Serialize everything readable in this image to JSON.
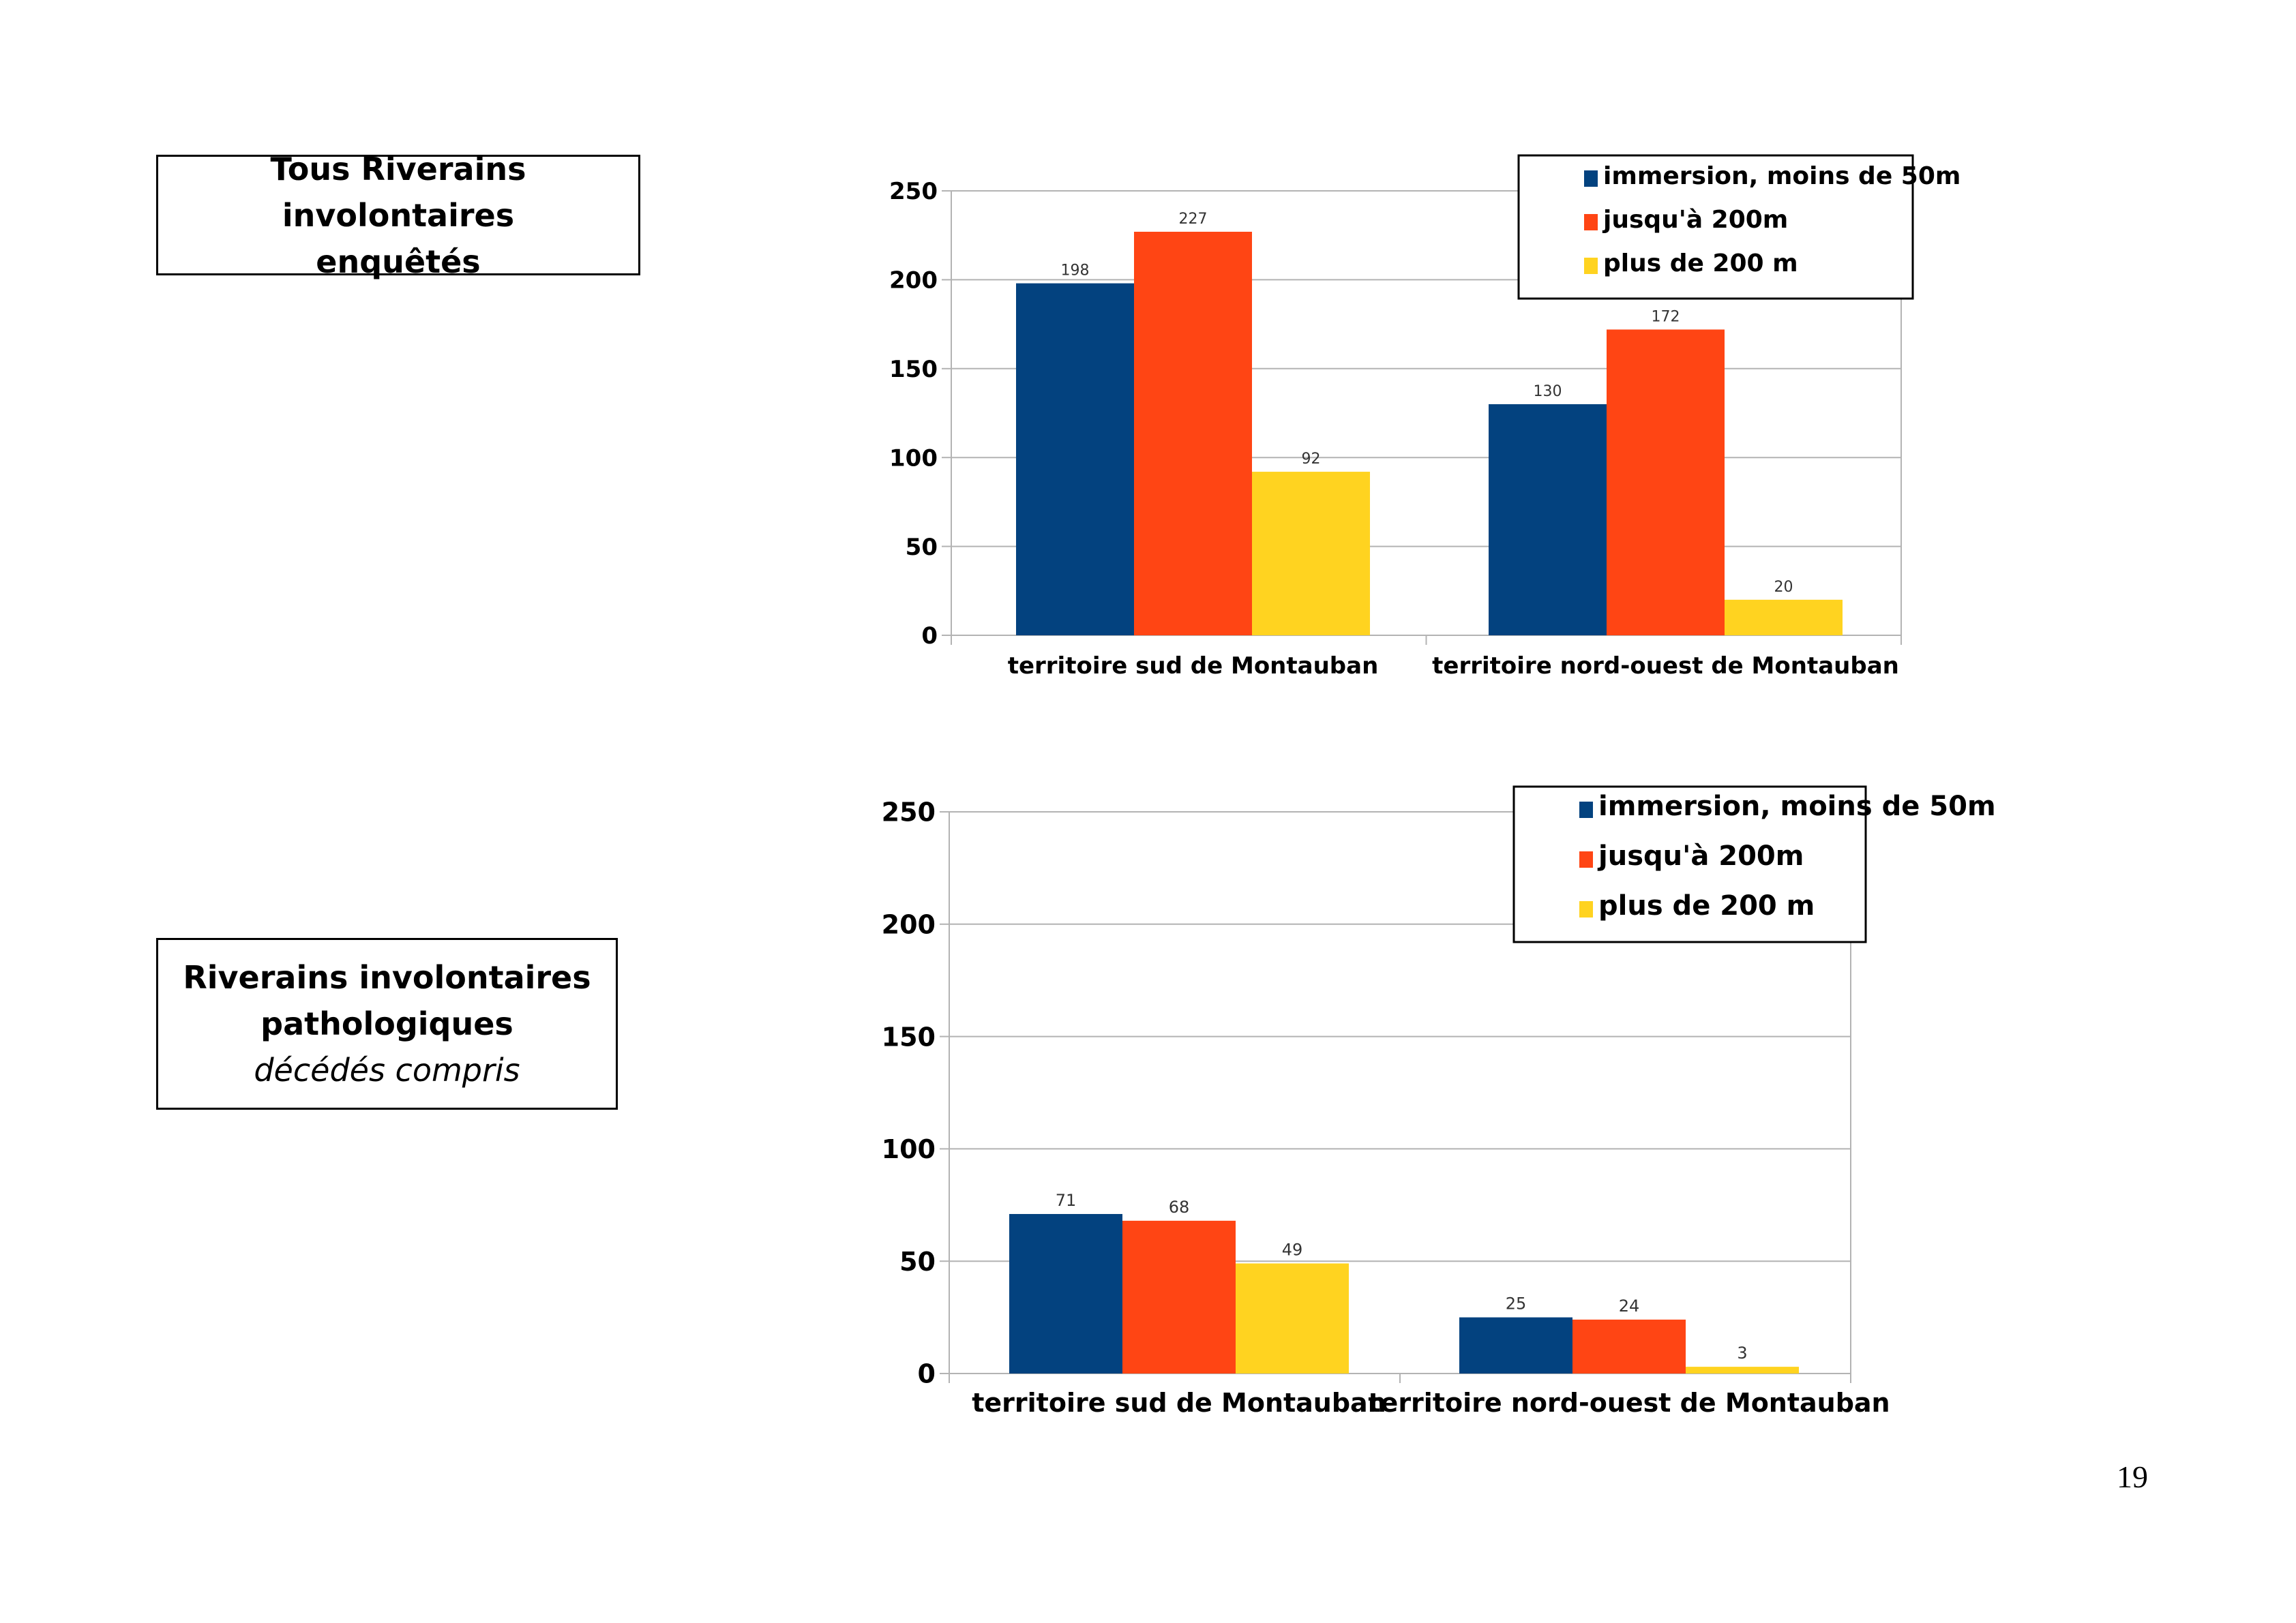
{
  "labels": {
    "box1": {
      "line1": "Tous Riverains involontaires",
      "line2": "enquêtés"
    },
    "box2": {
      "line1": "Riverains involontaires",
      "line2": "pathologiques",
      "line3": "décédés compris"
    }
  },
  "page_number": "19",
  "colors": {
    "series1": "#03427F",
    "series2": "#FF4514",
    "series3": "#FFD320",
    "grid": "#b3b3b3"
  },
  "chart_data": [
    {
      "type": "bar",
      "categories": [
        "territoire sud de Montauban",
        "territoire nord-ouest de Montauban"
      ],
      "series": [
        {
          "name": "immersion, moins de 50m",
          "values": [
            198,
            130
          ]
        },
        {
          "name": "jusqu'à 200m",
          "values": [
            227,
            172
          ]
        },
        {
          "name": "plus de 200 m",
          "values": [
            92,
            20
          ]
        }
      ],
      "ylim": [
        0,
        250
      ],
      "yticks": [
        0,
        50,
        100,
        150,
        200,
        250
      ],
      "grid": true,
      "legend": "top-right"
    },
    {
      "type": "bar",
      "categories": [
        "territoire sud de Montauban",
        "territoire nord-ouest de Montauban"
      ],
      "series": [
        {
          "name": "immersion, moins de 50m",
          "values": [
            71,
            25
          ]
        },
        {
          "name": "jusqu'à 200m",
          "values": [
            68,
            24
          ]
        },
        {
          "name": "plus de 200 m",
          "values": [
            49,
            3
          ]
        }
      ],
      "ylim": [
        0,
        250
      ],
      "yticks": [
        0,
        50,
        100,
        150,
        200,
        250
      ],
      "grid": true,
      "legend": "top-right"
    }
  ]
}
